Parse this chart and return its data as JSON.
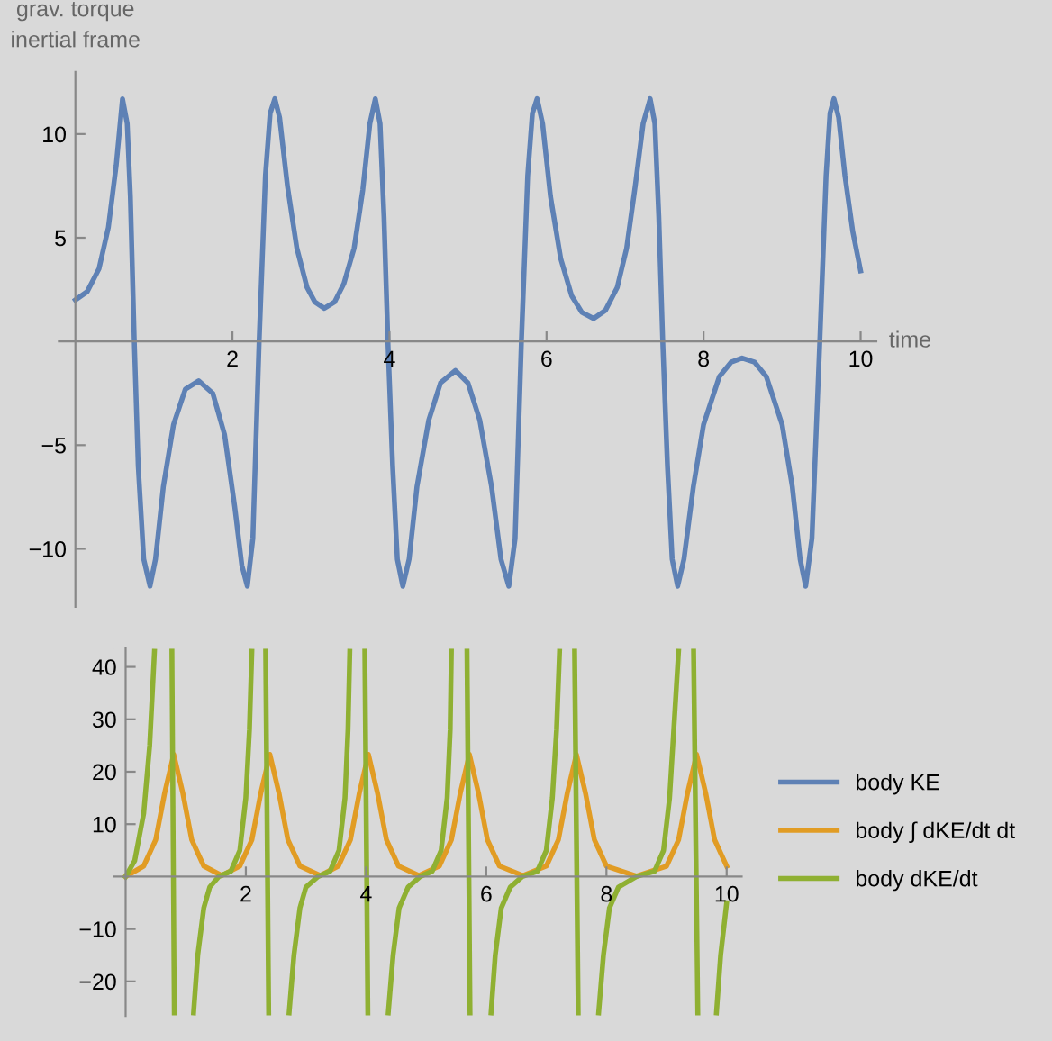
{
  "chart_data": [
    {
      "type": "line",
      "xlabel": "time",
      "ylabel": "grav. torque\ninertial frame",
      "xlim": [
        -0.21,
        10.2
      ],
      "ylim": [
        -12.8,
        13
      ],
      "xticks": [
        2,
        4,
        6,
        8,
        10
      ],
      "yticks": [
        -10,
        -5,
        5,
        10
      ],
      "grid": false,
      "legend": false,
      "series": [
        {
          "color": "#5e81b5",
          "x": [
            0,
            0.15,
            0.3,
            0.42,
            0.52,
            0.6,
            0.66,
            0.7,
            0.75,
            0.8,
            0.87,
            0.95,
            1.02,
            1.12,
            1.25,
            1.4,
            1.57,
            1.75,
            1.9,
            2.03,
            2.12,
            2.19,
            2.26,
            2.34,
            2.42,
            2.48,
            2.54,
            2.6,
            2.7,
            2.82,
            2.95,
            3.05,
            3.17,
            3.3,
            3.42,
            3.55,
            3.66,
            3.75,
            3.82,
            3.88,
            3.93,
            3.98,
            4.04,
            4.1,
            4.17,
            4.25,
            4.35,
            4.5,
            4.65,
            4.84,
            5.0,
            5.15,
            5.3,
            5.42,
            5.52,
            5.6,
            5.68,
            5.76,
            5.82,
            5.88,
            5.95,
            6.05,
            6.18,
            6.32,
            6.45,
            6.6,
            6.75,
            6.9,
            7.02,
            7.13,
            7.23,
            7.32,
            7.38,
            7.43,
            7.48,
            7.54,
            7.6,
            7.67,
            7.75,
            7.87,
            8.0,
            8.2,
            8.35,
            8.49,
            8.65,
            8.8,
            9.0,
            9.13,
            9.23,
            9.3,
            9.38,
            9.48,
            9.56,
            9.61,
            9.66,
            9.72,
            9.8,
            9.9,
            10.0
          ],
          "values": [
            2.0,
            2.4,
            3.5,
            5.5,
            8.5,
            11.7,
            10.5,
            7,
            0,
            -6,
            -10.5,
            -11.8,
            -10.5,
            -7,
            -4,
            -2.3,
            -1.9,
            -2.5,
            -4.5,
            -8,
            -10.8,
            -11.8,
            -9.5,
            0,
            8,
            11,
            11.7,
            10.8,
            7.5,
            4.5,
            2.6,
            1.9,
            1.6,
            1.9,
            2.8,
            4.5,
            7.3,
            10.5,
            11.7,
            10.5,
            6,
            0,
            -6,
            -10.5,
            -11.8,
            -10.5,
            -7,
            -3.8,
            -2,
            -1.4,
            -2,
            -3.8,
            -7,
            -10.5,
            -11.8,
            -9.5,
            0,
            8,
            11,
            11.7,
            10.5,
            7,
            4,
            2.2,
            1.4,
            1.1,
            1.5,
            2.6,
            4.5,
            7.5,
            10.5,
            11.7,
            10.5,
            6,
            0,
            -6,
            -10.5,
            -11.8,
            -10.5,
            -7,
            -4,
            -1.7,
            -1.0,
            -0.8,
            -1.0,
            -1.7,
            -4,
            -7,
            -10.5,
            -11.8,
            -9.5,
            0,
            8,
            11,
            11.7,
            10.8,
            8,
            5.3,
            3.4
          ]
        }
      ]
    },
    {
      "type": "line",
      "xlim": [
        -0.2,
        10.25
      ],
      "ylim": [
        -26.6,
        43.5
      ],
      "xticks": [
        2,
        4,
        6,
        8,
        10
      ],
      "yticks": [
        -20,
        -10,
        10,
        20,
        30,
        40
      ],
      "grid": false,
      "legend": "right",
      "series": [
        {
          "name": "body KE",
          "color": "#5e81b5"
        },
        {
          "name": "body ∫ dKE/dt dt",
          "color": "#e19c24",
          "x": [
            0,
            0.3,
            0.5,
            0.65,
            0.8,
            0.95,
            1.1,
            1.3,
            1.6,
            1.9,
            2.1,
            2.25,
            2.4,
            2.55,
            2.7,
            2.9,
            3.24,
            3.54,
            3.74,
            3.89,
            4.04,
            4.19,
            4.34,
            4.54,
            4.88,
            5.22,
            5.42,
            5.57,
            5.72,
            5.87,
            6.02,
            6.22,
            6.61,
            7.0,
            7.2,
            7.35,
            7.5,
            7.65,
            7.8,
            8.0,
            8.5,
            9.0,
            9.2,
            9.35,
            9.5,
            9.65,
            9.8,
            10.0
          ],
          "values": [
            0,
            2,
            7,
            16,
            23.3,
            16,
            7,
            2,
            0.2,
            2,
            7,
            16,
            23.3,
            16,
            7,
            2,
            0.2,
            2,
            7,
            16,
            23.3,
            16,
            7,
            2,
            0.2,
            2,
            7,
            16,
            23.3,
            16,
            7,
            2,
            0.2,
            2,
            7,
            16,
            23.3,
            16,
            7,
            2,
            0.1,
            2,
            7,
            16,
            23.3,
            16,
            7,
            2
          ]
        },
        {
          "name": "body dKE/dt",
          "color": "#8fb032",
          "x": [
            0,
            0.15,
            0.3,
            0.4,
            0.48,
            0.6,
            0.77,
            0.81,
            0.95,
            1.13,
            1.2,
            1.3,
            1.4,
            1.55,
            1.75,
            1.9,
            2.0,
            2.06,
            2.1,
            2.2,
            2.33,
            2.38,
            2.5,
            2.72,
            2.8,
            2.9,
            3.0,
            3.2,
            3.4,
            3.55,
            3.65,
            3.7,
            3.73,
            3.85,
            3.98,
            4.03,
            4.2,
            4.37,
            4.45,
            4.55,
            4.7,
            4.9,
            5.1,
            5.25,
            5.35,
            5.4,
            5.42,
            5.55,
            5.68,
            5.73,
            5.9,
            6.08,
            6.15,
            6.25,
            6.4,
            6.6,
            6.85,
            7.0,
            7.1,
            7.17,
            7.22,
            7.35,
            7.47,
            7.53,
            7.7,
            7.87,
            7.95,
            8.05,
            8.2,
            8.5,
            8.8,
            8.95,
            9.05,
            9.12,
            9.2,
            9.3,
            9.45,
            9.52,
            9.7,
            9.83,
            9.9,
            10.0
          ],
          "values": [
            0,
            3,
            12,
            25,
            43,
            null,
            43,
            -26,
            null,
            -26,
            -15,
            -6,
            -2,
            0,
            1,
            5,
            15,
            28,
            43,
            null,
            43,
            -26,
            null,
            -26,
            -15,
            -6,
            -2,
            0,
            1,
            5,
            15,
            28,
            43,
            null,
            43,
            -26,
            null,
            -26,
            -15,
            -6,
            -2,
            0,
            1,
            5,
            15,
            28,
            43,
            null,
            43,
            -26,
            null,
            -26,
            -15,
            -6,
            -2,
            0,
            1,
            5,
            15,
            28,
            43,
            null,
            43,
            -26,
            null,
            -26,
            -15,
            -6,
            -2,
            0,
            1,
            5,
            15,
            28,
            43,
            null,
            43,
            -26,
            null,
            -26,
            -15,
            -5
          ]
        }
      ]
    }
  ]
}
